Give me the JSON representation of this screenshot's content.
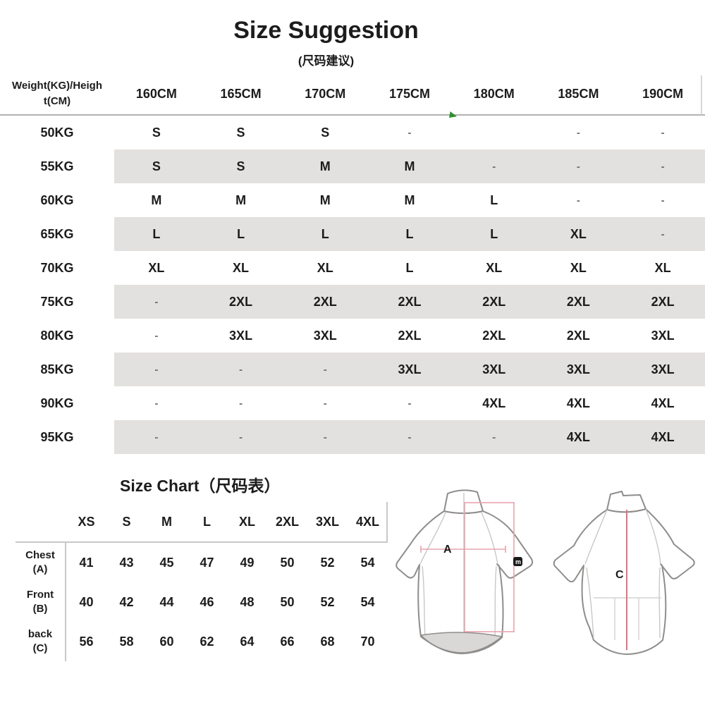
{
  "page": {
    "title": "Size Suggestion",
    "subtitle": "(尺码建议)"
  },
  "suggestion_table": {
    "corner_line1": "Weight(KG)/Heigh",
    "corner_line2": "t(CM)",
    "columns": [
      "160CM",
      "165CM",
      "170CM",
      "175CM",
      "180CM",
      "185CM",
      "190CM"
    ],
    "rows": [
      {
        "label": "50KG",
        "cells": [
          "S",
          "S",
          "S",
          "-",
          "",
          "-",
          "-"
        ]
      },
      {
        "label": "55KG",
        "cells": [
          "S",
          "S",
          "M",
          "M",
          "-",
          "-",
          "-"
        ]
      },
      {
        "label": "60KG",
        "cells": [
          "M",
          "M",
          "M",
          "M",
          "L",
          "-",
          "-"
        ]
      },
      {
        "label": "65KG",
        "cells": [
          "L",
          "L",
          "L",
          "L",
          "L",
          "XL",
          "-"
        ]
      },
      {
        "label": "70KG",
        "cells": [
          "XL",
          "XL",
          "XL",
          "L",
          "XL",
          "XL",
          "XL"
        ]
      },
      {
        "label": "75KG",
        "cells": [
          "-",
          "2XL",
          "2XL",
          "2XL",
          "2XL",
          "2XL",
          "2XL"
        ]
      },
      {
        "label": "80KG",
        "cells": [
          "-",
          "3XL",
          "3XL",
          "2XL",
          "2XL",
          "2XL",
          "3XL"
        ]
      },
      {
        "label": "85KG",
        "cells": [
          "-",
          "-",
          "-",
          "3XL",
          "3XL",
          "3XL",
          "3XL"
        ]
      },
      {
        "label": "90KG",
        "cells": [
          "-",
          "-",
          "-",
          "-",
          "4XL",
          "4XL",
          "4XL"
        ]
      },
      {
        "label": "95KG",
        "cells": [
          "-",
          "-",
          "-",
          "-",
          "-",
          "4XL",
          "4XL"
        ]
      }
    ]
  },
  "size_chart": {
    "title": "Size Chart（尺码表）",
    "columns": [
      "XS",
      "S",
      "M",
      "L",
      "XL",
      "2XL",
      "3XL",
      "4XL"
    ],
    "rows": [
      {
        "label_line1": "Chest",
        "label_line2": "(A)",
        "values": [
          "41",
          "43",
          "45",
          "47",
          "49",
          "50",
          "52",
          "54"
        ]
      },
      {
        "label_line1": "Front",
        "label_line2": "(B)",
        "values": [
          "40",
          "42",
          "44",
          "46",
          "48",
          "50",
          "52",
          "54"
        ]
      },
      {
        "label_line1": "back",
        "label_line2": "(C)",
        "values": [
          "56",
          "58",
          "60",
          "62",
          "64",
          "66",
          "68",
          "70"
        ]
      }
    ]
  },
  "diagram": {
    "front_measure_label": "A",
    "back_measure_label": "C",
    "sleeve_badge": "m"
  },
  "colors": {
    "row_stripe": "#e3e1df",
    "table_line": "#b3b1ae",
    "measure_pink": "#e7a3ae",
    "measure_red": "#e0717f",
    "marker_green": "#2f8f2f",
    "hem_fill": "#d9d8d6"
  }
}
